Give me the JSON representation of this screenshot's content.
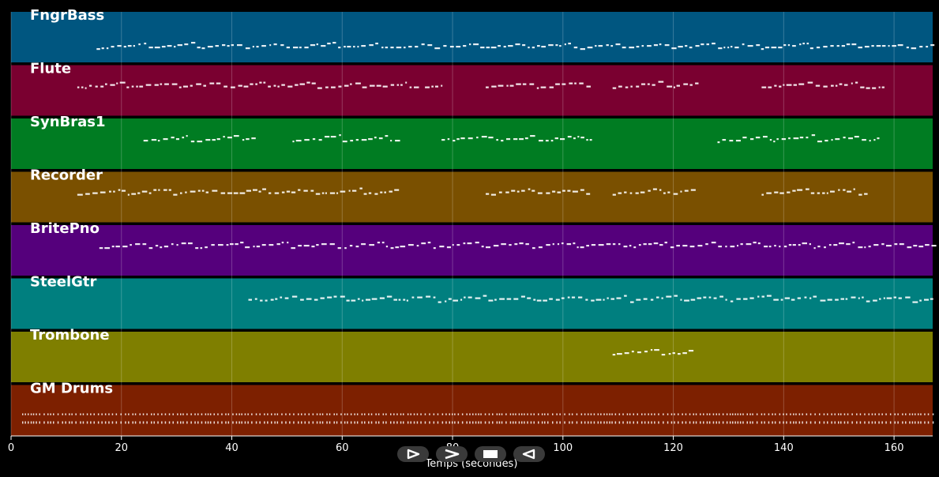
{
  "chart_data": {
    "type": "piano-roll",
    "xlabel": "Temps (secondes)",
    "xlim": [
      0,
      167
    ],
    "xticks": [
      0,
      20,
      40,
      60,
      80,
      100,
      120,
      140,
      160
    ],
    "grid": true,
    "tracks": [
      {
        "name": "FngrBass",
        "color": "#005680",
        "segments": [
          [
            15.5,
            167
          ]
        ]
      },
      {
        "name": "Flute",
        "color": "#7a0030",
        "segments": [
          [
            12,
            73
          ],
          [
            75,
            78
          ],
          [
            86,
            105
          ],
          [
            109,
            124
          ],
          [
            136,
            155
          ],
          [
            156,
            158
          ]
        ]
      },
      {
        "name": "SynBras1",
        "color": "#007c22",
        "segments": [
          [
            24,
            44
          ],
          [
            51,
            70
          ],
          [
            78,
            105
          ],
          [
            128,
            157
          ]
        ]
      },
      {
        "name": "Recorder",
        "color": "#7a5000",
        "segments": [
          [
            12,
            70
          ],
          [
            86,
            105
          ],
          [
            109,
            124
          ],
          [
            136,
            155
          ]
        ]
      },
      {
        "name": "BritePno",
        "color": "#55007c",
        "segments": [
          [
            16,
            167
          ]
        ]
      },
      {
        "name": "SteelGtr",
        "color": "#007f7f",
        "segments": [
          [
            43,
            167
          ]
        ]
      },
      {
        "name": "Trombone",
        "color": "#7f7f00",
        "segments": [
          [
            109,
            124
          ]
        ]
      },
      {
        "name": "GM Drums",
        "color": "#7d2000",
        "segments": [
          [
            2,
            167
          ]
        ]
      }
    ]
  },
  "controls": [
    {
      "name": "play-button",
      "icon": "play-outline-icon"
    },
    {
      "name": "fast-forward-button",
      "icon": "chevron-right-icon"
    },
    {
      "name": "stop-button",
      "icon": "stop-icon"
    },
    {
      "name": "rewind-button",
      "icon": "play-reverse-icon"
    }
  ]
}
